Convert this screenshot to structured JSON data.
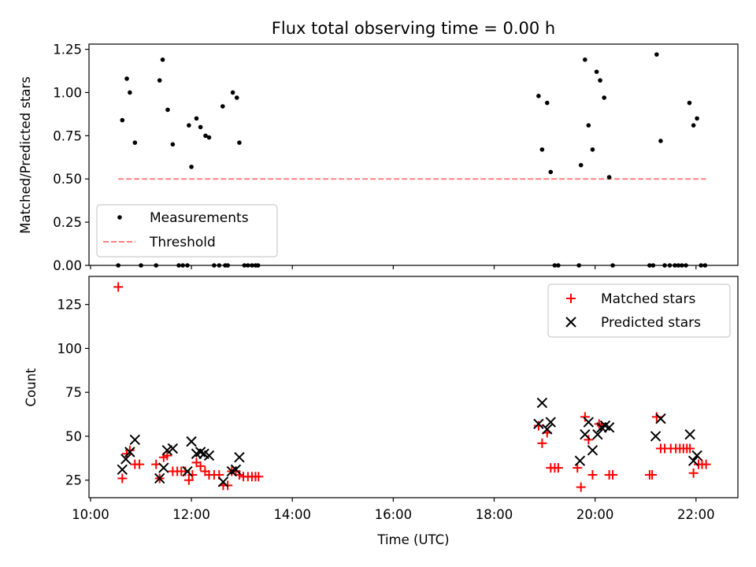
{
  "title": "Flux total observing time = 0.00 h",
  "chart_data": [
    {
      "type": "scatter",
      "ylabel": "Matched/Predicted stars",
      "xlim": [
        9.97,
        22.83
      ],
      "ylim": [
        0,
        1.28
      ],
      "yticks": [
        "0.00",
        "0.25",
        "0.50",
        "0.75",
        "1.00",
        "1.25"
      ],
      "legend_position": "bottom-left",
      "series": [
        {
          "name": "Measurements",
          "color": "#000000",
          "marker": "dot",
          "x": [
            10.55,
            10.63,
            10.72,
            10.78,
            10.88,
            11.0,
            11.3,
            11.37,
            11.43,
            11.53,
            11.63,
            11.75,
            11.83,
            11.92,
            11.95,
            12.0,
            12.1,
            12.18,
            12.28,
            12.35,
            12.45,
            12.55,
            12.62,
            12.67,
            12.72,
            12.82,
            12.9,
            12.95,
            13.05,
            13.12,
            13.2,
            13.27,
            13.32,
            18.88,
            18.95,
            19.05,
            19.12,
            19.2,
            19.27,
            19.68,
            19.72,
            19.8,
            19.87,
            19.95,
            20.03,
            20.1,
            20.18,
            20.28,
            20.35,
            21.08,
            21.15,
            21.22,
            21.3,
            21.38,
            21.48,
            21.58,
            21.65,
            21.72,
            21.8,
            21.87,
            21.95,
            22.02,
            22.1,
            22.18
          ],
          "y": [
            0.0,
            0.84,
            1.08,
            1.0,
            0.71,
            0.0,
            0.0,
            1.07,
            1.19,
            0.9,
            0.7,
            0.0,
            0.0,
            0.0,
            0.81,
            0.57,
            0.85,
            0.8,
            0.75,
            0.74,
            0.0,
            0.0,
            0.92,
            0.0,
            0.0,
            1.0,
            0.97,
            0.71,
            0.0,
            0.0,
            0.0,
            0.0,
            0.0,
            0.98,
            0.67,
            0.94,
            0.54,
            0.0,
            0.0,
            0.0,
            0.58,
            1.19,
            0.81,
            0.67,
            1.12,
            1.07,
            0.97,
            0.51,
            0.0,
            0.0,
            0.0,
            1.22,
            0.72,
            0.0,
            0.0,
            0.0,
            0.0,
            0.0,
            0.0,
            0.94,
            0.81,
            0.85,
            0.0,
            0.0
          ]
        },
        {
          "name": "Threshold",
          "color": "#ff8080",
          "marker": "dashed-line",
          "x": [
            10.55,
            22.2
          ],
          "y": [
            0.5,
            0.5
          ]
        }
      ]
    },
    {
      "type": "scatter",
      "xlabel": "Time (UTC)",
      "ylabel": "Count",
      "xlim": [
        9.97,
        22.83
      ],
      "ylim": [
        15,
        141
      ],
      "xticks": [
        10,
        12,
        14,
        16,
        18,
        20,
        22
      ],
      "xtick_labels": [
        "10:00",
        "12:00",
        "14:00",
        "16:00",
        "18:00",
        "20:00",
        "22:00"
      ],
      "yticks": [
        "25",
        "50",
        "75",
        "100",
        "125"
      ],
      "legend_position": "top-right",
      "series": [
        {
          "name": "Matched stars",
          "color": "#ff0000",
          "marker": "plus",
          "x": [
            10.55,
            10.63,
            10.72,
            10.78,
            10.88,
            10.97,
            11.3,
            11.37,
            11.45,
            11.52,
            11.63,
            11.72,
            11.8,
            11.88,
            11.95,
            12.02,
            12.1,
            12.18,
            12.27,
            12.35,
            12.45,
            12.55,
            12.63,
            12.72,
            12.8,
            12.88,
            12.95,
            13.03,
            13.12,
            13.2,
            13.27,
            13.33,
            18.88,
            18.95,
            19.05,
            19.12,
            19.2,
            19.27,
            19.65,
            19.72,
            19.8,
            19.87,
            19.95,
            20.08,
            20.13,
            20.28,
            20.35,
            21.08,
            21.13,
            21.22,
            21.3,
            21.38,
            21.5,
            21.6,
            21.68,
            21.75,
            21.82,
            21.88,
            21.95,
            22.05,
            22.12,
            22.2
          ],
          "y": [
            135,
            26,
            40,
            42,
            34,
            34,
            34,
            26,
            38,
            39,
            30,
            30,
            30,
            30,
            25,
            28,
            35,
            33,
            30,
            28,
            28,
            28,
            22,
            22,
            30,
            30,
            28,
            27,
            27,
            27,
            27,
            27,
            56,
            46,
            52,
            32,
            32,
            32,
            32,
            21,
            61,
            48,
            28,
            57,
            56,
            28,
            28,
            28,
            28,
            61,
            43,
            43,
            43,
            43,
            43,
            43,
            43,
            43,
            29,
            34,
            34,
            34
          ]
        },
        {
          "name": "Predicted stars",
          "color": "#000000",
          "marker": "x",
          "x": [
            10.63,
            10.7,
            10.78,
            10.88,
            11.37,
            11.45,
            11.52,
            11.63,
            11.92,
            12.0,
            12.1,
            12.18,
            12.25,
            12.35,
            12.63,
            12.8,
            12.88,
            12.95,
            18.88,
            18.95,
            19.05,
            19.12,
            19.7,
            19.8,
            19.87,
            19.95,
            20.05,
            20.13,
            20.2,
            20.28,
            21.2,
            21.3,
            21.88,
            21.95,
            22.02
          ],
          "y": [
            31,
            37,
            41,
            48,
            26,
            32,
            42,
            43,
            30,
            47,
            40,
            41,
            40,
            39,
            24,
            30,
            31,
            38,
            57,
            69,
            54,
            58,
            36,
            51,
            58,
            42,
            51,
            55,
            56,
            55,
            50,
            60,
            51,
            36,
            39
          ]
        }
      ]
    }
  ]
}
